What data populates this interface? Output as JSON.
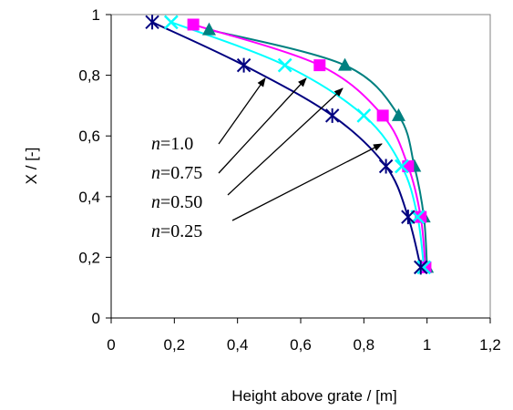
{
  "chart_data": {
    "type": "line",
    "xlabel": "Height above grate / [m]",
    "ylabel": "X / [-]",
    "xlim": [
      0,
      1.2
    ],
    "ylim": [
      0,
      1
    ],
    "xticks": [
      "0",
      "0,2",
      "0,4",
      "0,6",
      "0,8",
      "1",
      "1,2"
    ],
    "yticks": [
      "0",
      "0,2",
      "0,4",
      "0,6",
      "0,8",
      "1"
    ],
    "grid": false,
    "series": [
      {
        "name": "n=1.0",
        "color": "#000080",
        "marker": "asterisk",
        "x": [
          0.13,
          0.42,
          0.7,
          0.87,
          0.94,
          0.98
        ],
        "y": [
          0.975,
          0.833,
          0.667,
          0.5,
          0.333,
          0.167
        ]
      },
      {
        "name": "n=0.75",
        "color": "#00ffff",
        "marker": "x",
        "x": [
          0.19,
          0.55,
          0.8,
          0.92,
          0.97,
          0.99
        ],
        "y": [
          0.975,
          0.833,
          0.667,
          0.5,
          0.333,
          0.167
        ]
      },
      {
        "name": "n=0.50",
        "color": "#ff00ff",
        "marker": "square",
        "x": [
          0.26,
          0.66,
          0.86,
          0.94,
          0.98,
          0.995
        ],
        "y": [
          0.967,
          0.833,
          0.667,
          0.5,
          0.333,
          0.167
        ]
      },
      {
        "name": "n=0.25",
        "color": "#008080",
        "marker": "triangle",
        "x": [
          0.31,
          0.74,
          0.91,
          0.96,
          0.99,
          1.0
        ],
        "y": [
          0.95,
          0.833,
          0.667,
          0.5,
          0.333,
          0.167
        ]
      }
    ],
    "annotations": [
      {
        "prefix": "n",
        "label": "=1.0"
      },
      {
        "prefix": "n",
        "label": "=0.75"
      },
      {
        "prefix": "n",
        "label": "=0.50"
      },
      {
        "prefix": "n",
        "label": "=0.25"
      }
    ]
  }
}
